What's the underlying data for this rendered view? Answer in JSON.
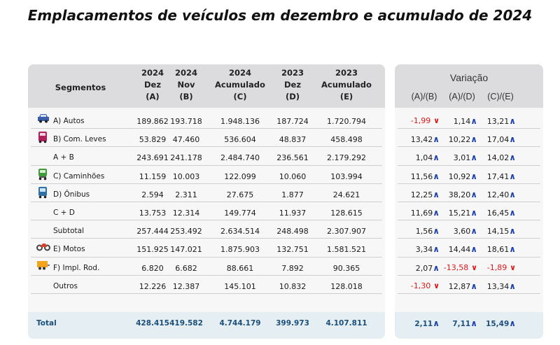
{
  "title": "Emplacamentos de veículos em dezembro e acumulado de 2024",
  "colors": {
    "up": "#1b3fae",
    "down": "#e01717",
    "total": "#1b4f7a"
  },
  "table": {
    "headers": {
      "segmentos": "Segmentos",
      "cols": [
        {
          "l1": "2024",
          "l2": "Dez",
          "l3": "(A)"
        },
        {
          "l1": "2024",
          "l2": "Nov",
          "l3": "(B)"
        },
        {
          "l1": "2024",
          "l2": "Acumulado",
          "l3": "(C)"
        },
        {
          "l1": "2023",
          "l2": "Dez",
          "l3": "(D)"
        },
        {
          "l1": "2023",
          "l2": "Acumulado",
          "l3": "(E)"
        }
      ],
      "variacao": "Variação",
      "var_cols": [
        "(A)/(B)",
        "(A)/(D)",
        "(C)/(E)"
      ]
    },
    "rows": [
      {
        "label": "A) Autos",
        "icon": "car-icon",
        "icon_color": "#3a5ea8",
        "values": [
          "189.862",
          "193.718",
          "1.948.136",
          "187.724",
          "1.720.794"
        ],
        "vars": [
          {
            "v": "-1,99",
            "dir": "down"
          },
          {
            "v": "1,14",
            "dir": "up"
          },
          {
            "v": "13,21",
            "dir": "up"
          }
        ]
      },
      {
        "label": "B) Com. Leves",
        "icon": "van-icon",
        "icon_color": "#b0205a",
        "values": [
          "53.829",
          "47.460",
          "536.604",
          "48.837",
          "458.498"
        ],
        "vars": [
          {
            "v": "13,42",
            "dir": "up"
          },
          {
            "v": "10,22",
            "dir": "up"
          },
          {
            "v": "17,04",
            "dir": "up"
          }
        ]
      },
      {
        "label": "A + B",
        "icon": "",
        "values": [
          "243.691",
          "241.178",
          "2.484.740",
          "236.561",
          "2.179.292"
        ],
        "vars": [
          {
            "v": "1,04",
            "dir": "up"
          },
          {
            "v": "3,01",
            "dir": "up"
          },
          {
            "v": "14,02",
            "dir": "up"
          }
        ]
      },
      {
        "label": "C) Caminhões",
        "icon": "truck-icon",
        "icon_color": "#3f9a3a",
        "values": [
          "11.159",
          "10.003",
          "122.099",
          "10.060",
          "103.994"
        ],
        "vars": [
          {
            "v": "11,56",
            "dir": "up"
          },
          {
            "v": "10,92",
            "dir": "up"
          },
          {
            "v": "17,41",
            "dir": "up"
          }
        ]
      },
      {
        "label": "D) Ônibus",
        "icon": "bus-icon",
        "icon_color": "#2f6fa8",
        "values": [
          "2.594",
          "2.311",
          "27.675",
          "1.877",
          "24.621"
        ],
        "vars": [
          {
            "v": "12,25",
            "dir": "up"
          },
          {
            "v": "38,20",
            "dir": "up"
          },
          {
            "v": "12,40",
            "dir": "up"
          }
        ]
      },
      {
        "label": "C + D",
        "icon": "",
        "values": [
          "13.753",
          "12.314",
          "149.774",
          "11.937",
          "128.615"
        ],
        "vars": [
          {
            "v": "11,69",
            "dir": "up"
          },
          {
            "v": "15,21",
            "dir": "up"
          },
          {
            "v": "16,45",
            "dir": "up"
          }
        ]
      },
      {
        "label": "Subtotal",
        "icon": "",
        "values": [
          "257.444",
          "253.492",
          "2.634.514",
          "248.498",
          "2.307.907"
        ],
        "vars": [
          {
            "v": "1,56",
            "dir": "up"
          },
          {
            "v": "3,60",
            "dir": "up"
          },
          {
            "v": "14,15",
            "dir": "up"
          }
        ]
      },
      {
        "label": "E) Motos",
        "icon": "motorcycle-icon",
        "icon_color": "#d8402a",
        "values": [
          "151.925",
          "147.021",
          "1.875.903",
          "132.751",
          "1.581.521"
        ],
        "vars": [
          {
            "v": "3,34",
            "dir": "up"
          },
          {
            "v": "14,44",
            "dir": "up"
          },
          {
            "v": "18,61",
            "dir": "up"
          }
        ]
      },
      {
        "label": "F) Impl. Rod.",
        "icon": "trailer-icon",
        "icon_color": "#f2a51c",
        "values": [
          "6.820",
          "6.682",
          "88.661",
          "7.892",
          "90.365"
        ],
        "vars": [
          {
            "v": "2,07",
            "dir": "up"
          },
          {
            "v": "-13,58",
            "dir": "down"
          },
          {
            "v": "-1,89",
            "dir": "down"
          }
        ]
      },
      {
        "label": "Outros",
        "icon": "",
        "values": [
          "12.226",
          "12.387",
          "145.101",
          "10.832",
          "128.018"
        ],
        "vars": [
          {
            "v": "-1,30",
            "dir": "down"
          },
          {
            "v": "12,87",
            "dir": "up"
          },
          {
            "v": "13,34",
            "dir": "up"
          }
        ]
      }
    ],
    "total": {
      "label": "Total",
      "values": [
        "428.415",
        "419.582",
        "4.744.179",
        "399.973",
        "4.107.811"
      ],
      "vars": [
        {
          "v": "2,11",
          "dir": "up"
        },
        {
          "v": "7,11",
          "dir": "up"
        },
        {
          "v": "15,49",
          "dir": "up"
        }
      ]
    }
  }
}
